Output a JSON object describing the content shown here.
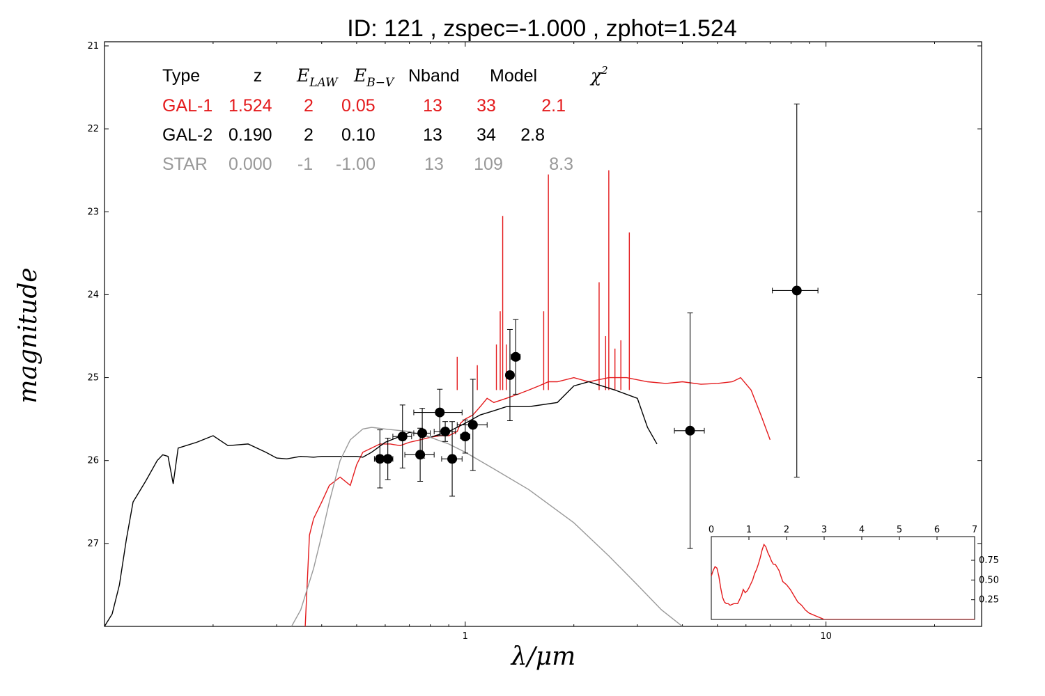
{
  "title": "ID:  121   , zspec=-1.000 , zphot=1.524",
  "colors": {
    "gal1": "#e41a1c",
    "gal2": "#000000",
    "star": "#999999",
    "points": "#000000"
  },
  "table": {
    "headers": [
      "Type",
      "z",
      "E_LAW",
      "E_B-V",
      "Nband",
      "Model",
      "χ2"
    ],
    "rows": [
      {
        "key": "gal1",
        "cells": [
          "GAL-1",
          "1.524",
          "2",
          "0.05",
          "13",
          "33",
          "2.1"
        ]
      },
      {
        "key": "gal2",
        "cells": [
          "GAL-2",
          "0.190",
          "2",
          "0.10",
          "13",
          "34",
          "2.8"
        ]
      },
      {
        "key": "star",
        "cells": [
          "STAR",
          "0.000",
          "-1",
          "-1.00",
          "13",
          "109",
          "8.3"
        ]
      }
    ]
  },
  "chart_data": [
    {
      "type": "line",
      "title": "ID:  121   , zspec=-1.000 , zphot=1.524",
      "xlabel": "λ/μm",
      "ylabel": "magnitude",
      "xscale": "log",
      "xlim": [
        0.1,
        27
      ],
      "ylim": [
        28.0,
        20.95
      ],
      "x_ticks": [
        1,
        10
      ],
      "x_tick_labels": [
        "1",
        "10"
      ],
      "y_ticks": [
        21,
        22,
        23,
        24,
        25,
        26,
        27
      ],
      "y_tick_labels": [
        "21",
        "22",
        "23",
        "24",
        "25",
        "26",
        "27"
      ],
      "series": [
        {
          "name": "GAL-1",
          "color": "#e41a1c",
          "x": [
            0.36,
            0.37,
            0.38,
            0.4,
            0.42,
            0.45,
            0.48,
            0.5,
            0.52,
            0.55,
            0.58,
            0.62,
            0.66,
            0.7,
            0.75,
            0.8,
            0.85,
            0.9,
            0.95,
            0.97,
            1.0,
            1.05,
            1.1,
            1.15,
            1.2,
            1.3,
            1.4,
            1.5,
            1.6,
            1.7,
            1.8,
            2.0,
            2.2,
            2.5,
            2.8,
            3.2,
            3.6,
            4.0,
            4.5,
            5.0,
            5.5,
            5.8,
            6.2,
            6.6,
            7.0
          ],
          "y": [
            28.0,
            26.9,
            26.7,
            26.5,
            26.3,
            26.2,
            26.3,
            26.05,
            25.9,
            25.85,
            25.8,
            25.8,
            25.82,
            25.78,
            25.75,
            25.72,
            25.7,
            25.7,
            25.65,
            25.55,
            25.5,
            25.45,
            25.35,
            25.25,
            25.3,
            25.25,
            25.2,
            25.15,
            25.1,
            25.05,
            25.05,
            25.0,
            25.05,
            25.0,
            25.0,
            25.05,
            25.07,
            25.05,
            25.08,
            25.07,
            25.05,
            25.0,
            25.15,
            25.45,
            25.75
          ],
          "emission_lines": [
            {
              "x": 0.95,
              "y": 24.75
            },
            {
              "x": 1.08,
              "y": 24.85
            },
            {
              "x": 1.22,
              "y": 24.6
            },
            {
              "x": 1.25,
              "y": 24.2
            },
            {
              "x": 1.27,
              "y": 23.05
            },
            {
              "x": 1.3,
              "y": 24.6
            },
            {
              "x": 1.65,
              "y": 24.2
            },
            {
              "x": 1.7,
              "y": 22.55
            },
            {
              "x": 2.35,
              "y": 23.85
            },
            {
              "x": 2.45,
              "y": 24.5
            },
            {
              "x": 2.5,
              "y": 22.5
            },
            {
              "x": 2.6,
              "y": 24.65
            },
            {
              "x": 2.7,
              "y": 24.55
            },
            {
              "x": 2.85,
              "y": 23.25
            }
          ]
        },
        {
          "name": "GAL-2",
          "color": "#000000",
          "x": [
            0.1,
            0.105,
            0.11,
            0.115,
            0.12,
            0.13,
            0.14,
            0.145,
            0.15,
            0.155,
            0.16,
            0.18,
            0.2,
            0.22,
            0.25,
            0.28,
            0.3,
            0.32,
            0.35,
            0.38,
            0.4,
            0.45,
            0.5,
            0.52,
            0.55,
            0.6,
            0.65,
            0.7,
            0.75,
            0.8,
            0.9,
            1.0,
            1.1,
            1.2,
            1.3,
            1.5,
            1.8,
            2.0,
            2.2,
            2.6,
            3.0,
            3.2,
            3.4
          ],
          "y": [
            28.0,
            27.85,
            27.5,
            26.95,
            26.5,
            26.25,
            26.0,
            25.93,
            25.95,
            26.28,
            25.85,
            25.78,
            25.7,
            25.82,
            25.8,
            25.9,
            25.97,
            25.98,
            25.95,
            25.96,
            25.95,
            25.95,
            25.95,
            25.96,
            25.9,
            25.78,
            25.72,
            25.66,
            25.68,
            25.72,
            25.65,
            25.55,
            25.45,
            25.4,
            25.35,
            25.35,
            25.3,
            25.1,
            25.05,
            25.15,
            25.25,
            25.6,
            25.8
          ]
        },
        {
          "name": "STAR",
          "color": "#999999",
          "x": [
            0.33,
            0.35,
            0.38,
            0.4,
            0.42,
            0.45,
            0.48,
            0.52,
            0.55,
            0.6,
            0.7,
            0.8,
            0.9,
            1.0,
            1.2,
            1.5,
            2.0,
            2.5,
            3.0,
            3.5,
            4.0
          ],
          "y": [
            28.0,
            27.8,
            27.3,
            26.9,
            26.5,
            26.0,
            25.75,
            25.62,
            25.6,
            25.62,
            25.65,
            25.72,
            25.8,
            25.9,
            26.1,
            26.35,
            26.75,
            27.15,
            27.5,
            27.8,
            28.0
          ]
        }
      ],
      "points": [
        {
          "x": 0.58,
          "y": 25.98,
          "xerr": 0.02,
          "yerr": 0.35
        },
        {
          "x": 0.61,
          "y": 25.98,
          "xerr": 0.02,
          "yerr": 0.25
        },
        {
          "x": 0.67,
          "y": 25.71,
          "xerr": 0.04,
          "yerr": 0.38
        },
        {
          "x": 0.75,
          "y": 25.93,
          "xerr": 0.07,
          "yerr": 0.32
        },
        {
          "x": 0.76,
          "y": 25.67,
          "xerr": 0.04,
          "yerr": 0.3
        },
        {
          "x": 0.85,
          "y": 25.42,
          "xerr": 0.13,
          "yerr": 0.28
        },
        {
          "x": 0.88,
          "y": 25.65,
          "xerr": 0.06,
          "yerr": 0.12
        },
        {
          "x": 0.92,
          "y": 25.98,
          "xerr": 0.06,
          "yerr": 0.45
        },
        {
          "x": 1.0,
          "y": 25.71,
          "xerr": 0.03,
          "yerr": 0.2
        },
        {
          "x": 1.05,
          "y": 25.57,
          "xerr": 0.1,
          "yerr": 0.55
        },
        {
          "x": 1.33,
          "y": 24.97,
          "xerr": 0.03,
          "yerr": 0.55
        },
        {
          "x": 1.38,
          "y": 24.75,
          "xerr": 0.04,
          "yerr": 0.45
        },
        {
          "x": 4.2,
          "y": 25.64,
          "xerr": 0.4,
          "yerr": 1.42
        },
        {
          "x": 8.3,
          "y": 23.95,
          "xerr": 1.2,
          "yerr": 2.25
        }
      ]
    },
    {
      "type": "line",
      "title": "",
      "xlabel": "",
      "ylabel": "",
      "xlim": [
        0,
        7
      ],
      "ylim": [
        0,
        1.05
      ],
      "x_ticks": [
        0,
        1,
        2,
        3,
        4,
        5,
        6,
        7
      ],
      "x_tick_labels": [
        "0",
        "1",
        "2",
        "3",
        "4",
        "5",
        "6",
        "7"
      ],
      "y_ticks": [
        0.25,
        0.5,
        0.75
      ],
      "y_tick_labels": [
        "0.25",
        "0.50",
        "0.75"
      ],
      "series": [
        {
          "name": "",
          "color": "#e41a1c",
          "x": [
            0,
            0.05,
            0.1,
            0.15,
            0.2,
            0.25,
            0.3,
            0.35,
            0.4,
            0.45,
            0.5,
            0.6,
            0.7,
            0.8,
            0.85,
            0.9,
            0.95,
            1.0,
            1.05,
            1.1,
            1.15,
            1.2,
            1.25,
            1.3,
            1.35,
            1.4,
            1.45,
            1.5,
            1.55,
            1.6,
            1.65,
            1.7,
            1.75,
            1.8,
            1.85,
            1.9,
            2.0,
            2.1,
            2.2,
            2.3,
            2.4,
            2.5,
            2.6,
            2.7,
            2.8,
            2.9,
            3.0,
            7.0
          ],
          "y": [
            0.55,
            0.62,
            0.67,
            0.65,
            0.55,
            0.4,
            0.28,
            0.22,
            0.2,
            0.2,
            0.18,
            0.2,
            0.2,
            0.3,
            0.38,
            0.34,
            0.36,
            0.4,
            0.45,
            0.5,
            0.58,
            0.63,
            0.7,
            0.78,
            0.88,
            0.95,
            0.92,
            0.85,
            0.8,
            0.74,
            0.7,
            0.7,
            0.66,
            0.62,
            0.55,
            0.48,
            0.44,
            0.38,
            0.3,
            0.22,
            0.18,
            0.12,
            0.08,
            0.06,
            0.04,
            0.02,
            0.0,
            0.0
          ]
        }
      ]
    }
  ]
}
